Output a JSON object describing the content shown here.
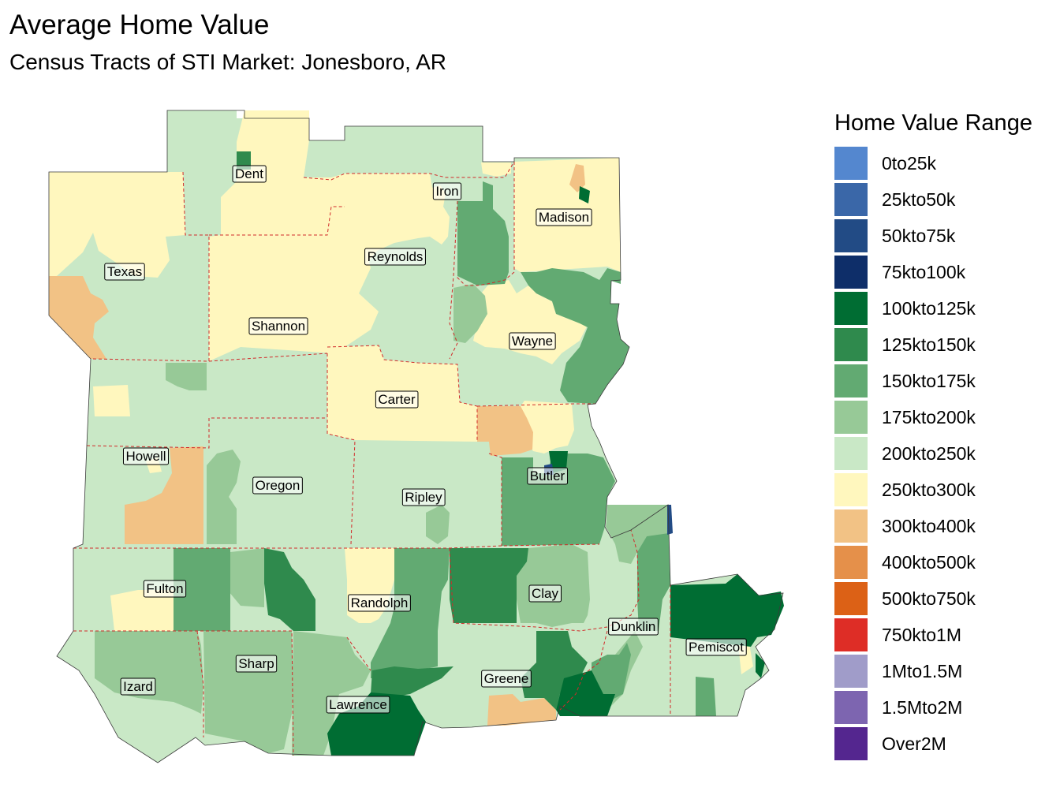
{
  "title": "Average Home Value",
  "subtitle": "Census Tracts of STI Market: Jonesboro, AR",
  "legend": {
    "title": "Home Value Range",
    "items": [
      {
        "label": "0to25k",
        "color": "#5487cf"
      },
      {
        "label": "25kto50k",
        "color": "#3a67a8"
      },
      {
        "label": "50kto75k",
        "color": "#224b85"
      },
      {
        "label": "75kto100k",
        "color": "#0e2e69"
      },
      {
        "label": "100kto125k",
        "color": "#006d33"
      },
      {
        "label": "125kto150k",
        "color": "#2f8a4d"
      },
      {
        "label": "150kto175k",
        "color": "#62aa72"
      },
      {
        "label": "175kto200k",
        "color": "#97c997"
      },
      {
        "label": "200kto250k",
        "color": "#c9e8c6"
      },
      {
        "label": "250kto300k",
        "color": "#fff7be"
      },
      {
        "label": "300kto400k",
        "color": "#f2c285"
      },
      {
        "label": "400kto500k",
        "color": "#e5904a"
      },
      {
        "label": "500kto750k",
        "color": "#dc6116"
      },
      {
        "label": "750kto1M",
        "color": "#de2d26"
      },
      {
        "label": "1Mto1.5M",
        "color": "#a09cc9"
      },
      {
        "label": "1.5Mto2M",
        "color": "#7d65b0"
      },
      {
        "label": "Over2M",
        "color": "#54268f"
      }
    ]
  },
  "counties": [
    {
      "name": "Dent"
    },
    {
      "name": "Iron"
    },
    {
      "name": "Madison"
    },
    {
      "name": "Texas"
    },
    {
      "name": "Reynolds"
    },
    {
      "name": "Shannon"
    },
    {
      "name": "Wayne"
    },
    {
      "name": "Carter"
    },
    {
      "name": "Howell"
    },
    {
      "name": "Butler"
    },
    {
      "name": "Oregon"
    },
    {
      "name": "Ripley"
    },
    {
      "name": "Fulton"
    },
    {
      "name": "Clay"
    },
    {
      "name": "Randolph"
    },
    {
      "name": "Dunklin"
    },
    {
      "name": "Pemiscot"
    },
    {
      "name": "Sharp"
    },
    {
      "name": "Greene"
    },
    {
      "name": "Izard"
    },
    {
      "name": "Lawrence"
    }
  ]
}
